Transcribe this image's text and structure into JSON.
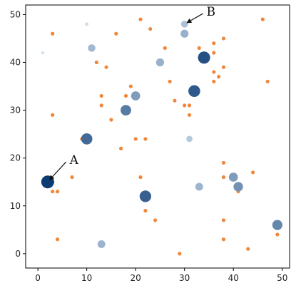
{
  "chart_data": {
    "type": "scatter",
    "title": "",
    "xlabel": "",
    "ylabel": "",
    "xlim": [
      -2.5,
      51.5
    ],
    "ylim": [
      -3,
      52
    ],
    "xticks": [
      0,
      10,
      20,
      30,
      40,
      50
    ],
    "yticks": [
      0,
      10,
      20,
      30,
      40,
      50
    ],
    "grid": false,
    "colors": {
      "small": "#f0873a",
      "tint_scale": [
        "#d4e3f1",
        "#0b3b73"
      ],
      "axis": "#000000"
    },
    "series": [
      {
        "role": "highlighted",
        "points": [
          {
            "x": 2,
            "y": 15,
            "w": 1.0
          },
          {
            "x": 34,
            "y": 41,
            "w": 0.88
          },
          {
            "x": 32,
            "y": 34,
            "w": 0.82
          },
          {
            "x": 22,
            "y": 12,
            "w": 0.78
          },
          {
            "x": 10,
            "y": 24,
            "w": 0.72
          },
          {
            "x": 18,
            "y": 30,
            "w": 0.62
          },
          {
            "x": 49,
            "y": 6,
            "w": 0.55
          },
          {
            "x": 41,
            "y": 14,
            "w": 0.48
          },
          {
            "x": 40,
            "y": 16,
            "w": 0.42
          },
          {
            "x": 20,
            "y": 33,
            "w": 0.42
          },
          {
            "x": 30,
            "y": 46,
            "w": 0.3
          },
          {
            "x": 25,
            "y": 40,
            "w": 0.3
          },
          {
            "x": 13,
            "y": 2,
            "w": 0.28
          },
          {
            "x": 33,
            "y": 14,
            "w": 0.28
          },
          {
            "x": 11,
            "y": 43,
            "w": 0.25
          },
          {
            "x": 30,
            "y": 48,
            "w": 0.2
          },
          {
            "x": 31,
            "y": 24,
            "w": 0.15
          },
          {
            "x": 10,
            "y": 48,
            "w": 0.02
          },
          {
            "x": 1,
            "y": 42,
            "w": 0.01
          }
        ]
      },
      {
        "role": "small",
        "points": [
          {
            "x": 3,
            "y": 46
          },
          {
            "x": 21,
            "y": 49
          },
          {
            "x": 23,
            "y": 47
          },
          {
            "x": 46,
            "y": 49
          },
          {
            "x": 16,
            "y": 46
          },
          {
            "x": 36,
            "y": 44
          },
          {
            "x": 38,
            "y": 45
          },
          {
            "x": 26,
            "y": 43
          },
          {
            "x": 33,
            "y": 43
          },
          {
            "x": 36,
            "y": 42
          },
          {
            "x": 12,
            "y": 40
          },
          {
            "x": 14,
            "y": 39
          },
          {
            "x": 38,
            "y": 39
          },
          {
            "x": 36,
            "y": 38
          },
          {
            "x": 37,
            "y": 37
          },
          {
            "x": 36,
            "y": 36
          },
          {
            "x": 47,
            "y": 36
          },
          {
            "x": 27,
            "y": 36
          },
          {
            "x": 19,
            "y": 35
          },
          {
            "x": 13,
            "y": 33
          },
          {
            "x": 18,
            "y": 33
          },
          {
            "x": 28,
            "y": 32
          },
          {
            "x": 13,
            "y": 31
          },
          {
            "x": 30,
            "y": 31
          },
          {
            "x": 31,
            "y": 31
          },
          {
            "x": 31,
            "y": 29
          },
          {
            "x": 3,
            "y": 29
          },
          {
            "x": 15,
            "y": 28
          },
          {
            "x": 9,
            "y": 24
          },
          {
            "x": 20,
            "y": 24
          },
          {
            "x": 22,
            "y": 24
          },
          {
            "x": 17,
            "y": 22
          },
          {
            "x": 38,
            "y": 19
          },
          {
            "x": 44,
            "y": 17
          },
          {
            "x": 7,
            "y": 16
          },
          {
            "x": 21,
            "y": 16
          },
          {
            "x": 38,
            "y": 16
          },
          {
            "x": 3,
            "y": 15
          },
          {
            "x": 3,
            "y": 13
          },
          {
            "x": 4,
            "y": 13
          },
          {
            "x": 41,
            "y": 13
          },
          {
            "x": 22,
            "y": 9
          },
          {
            "x": 24,
            "y": 7
          },
          {
            "x": 38,
            "y": 7
          },
          {
            "x": 49,
            "y": 4
          },
          {
            "x": 4,
            "y": 3
          },
          {
            "x": 38,
            "y": 3
          },
          {
            "x": 43,
            "y": 1
          },
          {
            "x": 29,
            "y": 0
          }
        ]
      }
    ],
    "annotations": [
      {
        "text": "A",
        "target": {
          "x": 2,
          "y": 15
        },
        "label_at": {
          "x": 6.5,
          "y": 19.5
        }
      },
      {
        "text": "B",
        "target": {
          "x": 30,
          "y": 48
        },
        "label_at": {
          "x": 34.5,
          "y": 50.5
        }
      }
    ]
  }
}
